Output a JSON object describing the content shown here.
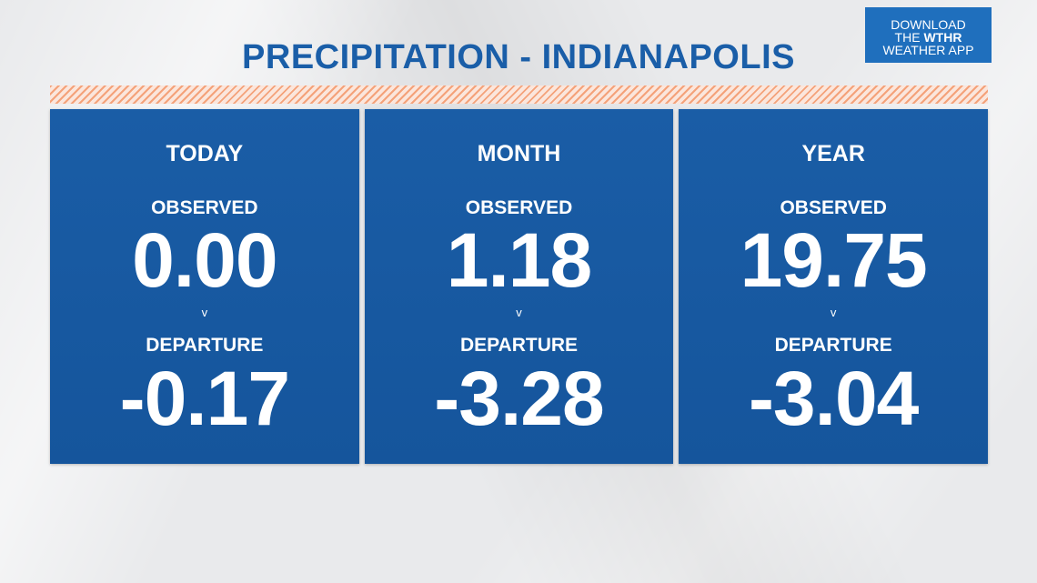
{
  "header": {
    "title": "PRECIPITATION - INDIANAPOLIS"
  },
  "app_badge": {
    "line1": "DOWNLOAD",
    "line2_prefix": "THE ",
    "line2_brand": "WTHR",
    "line3": "WEATHER APP"
  },
  "panels": [
    {
      "title": "TODAY",
      "observed_label": "OBSERVED",
      "observed_value": "0.00",
      "separator": "v",
      "departure_label": "DEPARTURE",
      "departure_value": "-0.17"
    },
    {
      "title": "MONTH",
      "observed_label": "OBSERVED",
      "observed_value": "1.18",
      "separator": "v",
      "departure_label": "DEPARTURE",
      "departure_value": "-3.28"
    },
    {
      "title": "YEAR",
      "observed_label": "OBSERVED",
      "observed_value": "19.75",
      "separator": "v",
      "departure_label": "DEPARTURE",
      "departure_value": "-3.04"
    }
  ],
  "colors": {
    "panel_blue": "#1a5da6",
    "title_blue": "#1a5ea8",
    "badge_blue": "#1f6fbd",
    "stripe_orange": "#f4a27a"
  }
}
